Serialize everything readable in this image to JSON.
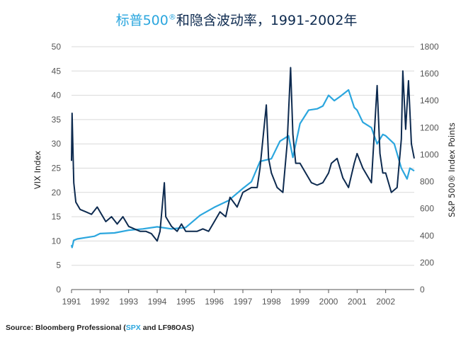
{
  "chart_data": {
    "type": "line",
    "title_part1": "标普500",
    "title_reg": "®",
    "title_part2": "和隐含波动率，1991-2002年",
    "ylabel_left": "VIX Index",
    "ylabel_right": "S&P 500® Index Points",
    "x_ticks": [
      "1991",
      "1992",
      "1993",
      "1994",
      "1995",
      "1996",
      "1997",
      "1998",
      "1999",
      "2000",
      "2001",
      "2002"
    ],
    "y_left_ticks": [
      "0",
      "5",
      "10",
      "15",
      "20",
      "25",
      "30",
      "35",
      "40",
      "45",
      "50"
    ],
    "y_right_ticks": [
      "0",
      "200",
      "400",
      "600",
      "800",
      "1000",
      "1200",
      "1400",
      "1600",
      "1800"
    ],
    "xlim": [
      1991.0,
      2003.0
    ],
    "ylim_left": [
      0,
      50
    ],
    "ylim_right": [
      0,
      1800
    ],
    "grid": true,
    "series": [
      {
        "key": "vix",
        "axis": "left",
        "color": "#0d2a4f",
        "x": [
          1991.0,
          1991.02,
          1991.05,
          1991.08,
          1991.15,
          1991.3,
          1991.5,
          1991.7,
          1991.9,
          1992.0,
          1992.2,
          1992.4,
          1992.6,
          1992.8,
          1993.0,
          1993.2,
          1993.4,
          1993.6,
          1993.8,
          1994.0,
          1994.1,
          1994.25,
          1994.3,
          1994.5,
          1994.7,
          1994.85,
          1995.0,
          1995.2,
          1995.4,
          1995.6,
          1995.8,
          1996.0,
          1996.2,
          1996.4,
          1996.55,
          1996.8,
          1997.0,
          1997.3,
          1997.5,
          1997.6,
          1997.82,
          1997.9,
          1998.0,
          1998.2,
          1998.4,
          1998.55,
          1998.67,
          1998.75,
          1998.85,
          1999.0,
          1999.2,
          1999.4,
          1999.6,
          1999.8,
          2000.0,
          2000.1,
          2000.3,
          2000.5,
          2000.7,
          2000.9,
          2001.0,
          2001.2,
          2001.5,
          2001.7,
          2001.8,
          2001.9,
          2002.0,
          2002.2,
          2002.4,
          2002.55,
          2002.6,
          2002.7,
          2002.8,
          2002.9,
          2003.0
        ],
        "values": [
          26.5,
          36.3,
          29,
          22,
          18,
          16.5,
          16,
          15.5,
          17,
          16,
          14,
          15,
          13.5,
          15,
          13,
          12.5,
          12,
          12,
          11.5,
          10,
          12,
          22,
          15,
          13,
          12,
          13.5,
          12,
          12,
          12,
          12.5,
          12,
          14,
          16,
          15,
          19,
          17,
          20,
          21,
          21,
          25,
          38,
          27,
          24,
          21,
          20,
          30,
          45.7,
          32,
          26,
          26,
          24,
          22,
          21.5,
          22,
          24,
          26,
          27,
          23,
          21,
          26,
          28,
          25,
          22,
          42,
          28,
          24,
          24,
          20,
          21,
          31,
          45,
          33,
          43,
          30,
          27
        ]
      },
      {
        "key": "spx",
        "axis": "right",
        "color": "#2ba6de",
        "x": [
          1991.0,
          1991.02,
          1991.08,
          1991.2,
          1991.5,
          1991.8,
          1992.0,
          1992.5,
          1993.0,
          1993.5,
          1994.0,
          1994.5,
          1995.0,
          1995.5,
          1996.0,
          1996.5,
          1997.0,
          1997.3,
          1997.6,
          1997.8,
          1998.0,
          1998.3,
          1998.6,
          1998.75,
          1999.0,
          1999.3,
          1999.6,
          1999.8,
          2000.0,
          2000.2,
          2000.4,
          2000.7,
          2000.9,
          2001.0,
          2001.2,
          2001.5,
          2001.7,
          2001.9,
          2002.0,
          2002.3,
          2002.55,
          2002.75,
          2002.85,
          2003.0
        ],
        "values": [
          330,
          312,
          365,
          375,
          385,
          395,
          415,
          420,
          440,
          450,
          465,
          450,
          460,
          550,
          610,
          660,
          750,
          800,
          950,
          960,
          970,
          1100,
          1140,
          980,
          1230,
          1330,
          1340,
          1360,
          1440,
          1400,
          1430,
          1480,
          1350,
          1330,
          1240,
          1200,
          1080,
          1150,
          1140,
          1080,
          900,
          820,
          900,
          880
        ]
      }
    ]
  },
  "source": {
    "prefix": "Source: Bloomberg Professional (",
    "spx": "SPX",
    "suffix": " and LF98OAS)"
  }
}
